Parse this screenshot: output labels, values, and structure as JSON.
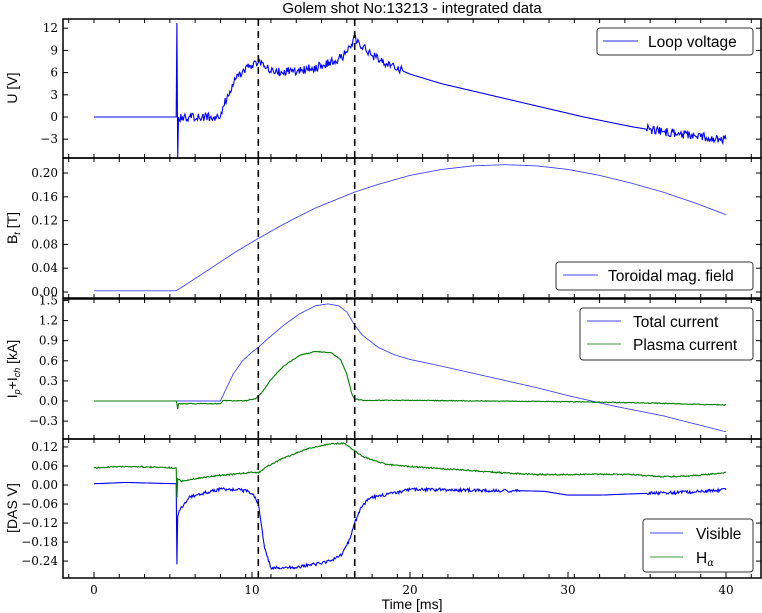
{
  "title": "Golem shot No:13213 - integrated data",
  "xlabel": "Time [ms]",
  "colors": {
    "blue": "#0000ff",
    "blue_light": "#5555ff",
    "green": "#007f00",
    "green_light": "#3a9a3a",
    "vline": "#000000"
  },
  "chart_data": [
    {
      "type": "line",
      "id": "loop_voltage",
      "ylabel": "U [V]",
      "xlim": [
        -2,
        42.2
      ],
      "ylim": [
        -5.5,
        13.3
      ],
      "yticks": [
        12,
        9,
        6,
        3,
        0,
        -3
      ],
      "ytick_labels": [
        "12",
        "9",
        "6",
        "3",
        "0",
        "−3"
      ],
      "legend": {
        "position": "upper right",
        "entries": [
          "Loop voltage"
        ]
      },
      "vlines": [
        10.4,
        16.5
      ],
      "series": [
        {
          "name": "Loop voltage",
          "color": "#0000ff",
          "noise": 0.6,
          "x": [
            0,
            5.2,
            5.25,
            5.3,
            5.35,
            6,
            7,
            8.0,
            8.2,
            8.6,
            9.0,
            9.5,
            10.0,
            10.4,
            10.9,
            11.5,
            12.5,
            13.5,
            14.5,
            15.3,
            15.9,
            16.3,
            16.5,
            16.8,
            17.5,
            18.5,
            20,
            22,
            25,
            28,
            31,
            34,
            36,
            38,
            40
          ],
          "y": [
            0,
            0,
            12.7,
            -5.5,
            0,
            0,
            0,
            0,
            1.5,
            3.5,
            5.2,
            6.3,
            7.0,
            7.3,
            6.6,
            6.2,
            6.2,
            6.5,
            7.0,
            7.6,
            8.5,
            9.8,
            10.8,
            10.0,
            8.5,
            7.2,
            5.8,
            4.5,
            3.0,
            1.5,
            0.0,
            -1.3,
            -2.0,
            -2.5,
            -3.0
          ],
          "noisy_ranges": [
            [
              5.35,
              19.5
            ],
            [
              35,
              40
            ]
          ]
        }
      ]
    },
    {
      "type": "line",
      "id": "toroidal_field",
      "ylabel": "B_t [T]",
      "xlim": [
        -2,
        42.2
      ],
      "ylim": [
        -0.01,
        0.225
      ],
      "yticks": [
        0.2,
        0.16,
        0.12,
        0.08,
        0.04,
        0.0
      ],
      "ytick_labels": [
        "0.20",
        "0.16",
        "0.12",
        "0.08",
        "0.04",
        "0.00"
      ],
      "legend": {
        "position": "lower right",
        "entries": [
          "Toroidal mag. field"
        ]
      },
      "vlines": [
        10.4,
        16.5
      ],
      "series": [
        {
          "name": "Toroidal mag. field",
          "color": "#4444ff",
          "noise": 0,
          "x": [
            0,
            5.2,
            7,
            9,
            10.4,
            12,
            14,
            16.5,
            18,
            20,
            22,
            24,
            26,
            28,
            30,
            32,
            34,
            36,
            38,
            40
          ],
          "y": [
            0.002,
            0.002,
            0.033,
            0.068,
            0.09,
            0.114,
            0.141,
            0.168,
            0.181,
            0.196,
            0.206,
            0.212,
            0.214,
            0.212,
            0.206,
            0.196,
            0.183,
            0.168,
            0.15,
            0.13
          ]
        }
      ]
    },
    {
      "type": "line",
      "id": "currents",
      "ylabel": "I_p+I_ch [kA]",
      "xlim": [
        -2,
        42.2
      ],
      "ylim": [
        -0.57,
        1.52
      ],
      "yticks": [
        1.5,
        1.2,
        0.9,
        0.6,
        0.3,
        0.0,
        -0.3
      ],
      "ytick_labels": [
        "1.5",
        "1.2",
        "0.9",
        "0.6",
        "0.3",
        "0.0",
        "−0.3"
      ],
      "legend": {
        "position": "upper right",
        "entries": [
          "Total current",
          "Plasma current"
        ]
      },
      "vlines": [
        10.4,
        16.5
      ],
      "series": [
        {
          "name": "Total current",
          "color": "#4444ff",
          "noise": 0,
          "x": [
            0,
            8.0,
            8.3,
            8.8,
            9.4,
            10.0,
            10.4,
            11.0,
            12.0,
            13.0,
            14.0,
            14.8,
            15.5,
            16.0,
            16.5,
            17.0,
            18.0,
            19.0,
            20.0,
            22.0,
            25.0,
            28.0,
            30.0,
            33.0,
            36.0,
            40.0
          ],
          "y": [
            0,
            0,
            0.15,
            0.4,
            0.6,
            0.73,
            0.8,
            0.93,
            1.13,
            1.3,
            1.42,
            1.45,
            1.42,
            1.33,
            1.13,
            0.98,
            0.8,
            0.69,
            0.62,
            0.52,
            0.36,
            0.2,
            0.08,
            -0.08,
            -0.22,
            -0.46
          ]
        },
        {
          "name": "Plasma current",
          "color": "#007f00",
          "noise": 0.006,
          "x": [
            0,
            5.2,
            5.25,
            5.3,
            5.35,
            8.0,
            8.2,
            9.5,
            10.2,
            10.6,
            11.2,
            12.0,
            13.0,
            14.0,
            15.0,
            15.6,
            16.0,
            16.3,
            16.5,
            17.0,
            20,
            25,
            30,
            35,
            40
          ],
          "y": [
            0,
            0,
            -0.04,
            -0.12,
            -0.04,
            -0.04,
            0.01,
            0.0,
            0.03,
            0.12,
            0.32,
            0.52,
            0.68,
            0.74,
            0.72,
            0.62,
            0.4,
            0.12,
            0.03,
            0.01,
            0.01,
            0.0,
            -0.01,
            -0.03,
            -0.06
          ],
          "noisy_ranges": [
            [
              5.3,
              40
            ]
          ]
        }
      ]
    },
    {
      "type": "line",
      "id": "das_signals",
      "ylabel": "[DAS V]",
      "xlim": [
        -2,
        42.2
      ],
      "ylim": [
        -0.295,
        0.145
      ],
      "yticks": [
        0.12,
        0.06,
        0.0,
        -0.06,
        -0.12,
        -0.18,
        -0.24
      ],
      "ytick_labels": [
        "0.12",
        "0.06",
        "0.00",
        "−0.06",
        "−0.12",
        "−0.18",
        "−0.24"
      ],
      "legend": {
        "position": "lower right",
        "entries": [
          "Visible",
          "H_alpha"
        ]
      },
      "vlines": [
        10.4,
        16.5
      ],
      "series": [
        {
          "name": "Visible",
          "color": "#0000ff",
          "noise": 0.005,
          "x": [
            0,
            2,
            5.2,
            5.25,
            5.3,
            5.4,
            6.0,
            7.0,
            8.0,
            9.0,
            9.8,
            10.1,
            10.4,
            10.8,
            11.2,
            12.0,
            13.0,
            14.0,
            15.0,
            15.7,
            16.2,
            16.5,
            16.9,
            17.5,
            18.5,
            20,
            22,
            25,
            27,
            28.5,
            30,
            32,
            34,
            36,
            38,
            40
          ],
          "y": [
            0.004,
            0.008,
            0.004,
            -0.25,
            -0.1,
            -0.08,
            -0.04,
            -0.025,
            -0.012,
            -0.015,
            -0.02,
            -0.03,
            -0.06,
            -0.2,
            -0.262,
            -0.262,
            -0.258,
            -0.25,
            -0.24,
            -0.22,
            -0.17,
            -0.12,
            -0.07,
            -0.04,
            -0.03,
            -0.015,
            -0.015,
            -0.018,
            -0.018,
            -0.02,
            -0.032,
            -0.032,
            -0.028,
            -0.025,
            -0.022,
            -0.015
          ],
          "noisy_ranges": [
            [
              5.4,
              27
            ],
            [
              35,
              40
            ]
          ]
        },
        {
          "name": "H_alpha",
          "color": "#007f00",
          "noise": 0.002,
          "x": [
            0,
            2,
            5.2,
            5.25,
            5.3,
            5.5,
            7,
            9,
            10.0,
            10.4,
            11.0,
            12.0,
            13.5,
            15.0,
            15.8,
            16.3,
            17.0,
            18.0,
            19.0,
            21,
            24,
            26,
            28,
            30,
            32,
            34,
            36,
            37.5,
            39,
            40
          ],
          "y": [
            0.054,
            0.059,
            0.054,
            -0.04,
            0.02,
            0.012,
            0.025,
            0.035,
            0.04,
            0.038,
            0.06,
            0.085,
            0.115,
            0.13,
            0.132,
            0.115,
            0.09,
            0.072,
            0.062,
            0.055,
            0.045,
            0.038,
            0.033,
            0.033,
            0.034,
            0.033,
            0.026,
            0.028,
            0.034,
            0.04
          ]
        }
      ]
    }
  ],
  "xaxis": {
    "ticks": [
      0,
      10,
      20,
      30,
      40
    ],
    "tick_labels": [
      "0",
      "10",
      "20",
      "30",
      "40"
    ],
    "minor_step": 1.6
  },
  "legends": {
    "p1": [
      "Loop voltage"
    ],
    "p2": [
      "Toroidal mag. field"
    ],
    "p3": [
      "Total current",
      "Plasma current"
    ],
    "p4": [
      "Visible",
      "H"
    ]
  }
}
